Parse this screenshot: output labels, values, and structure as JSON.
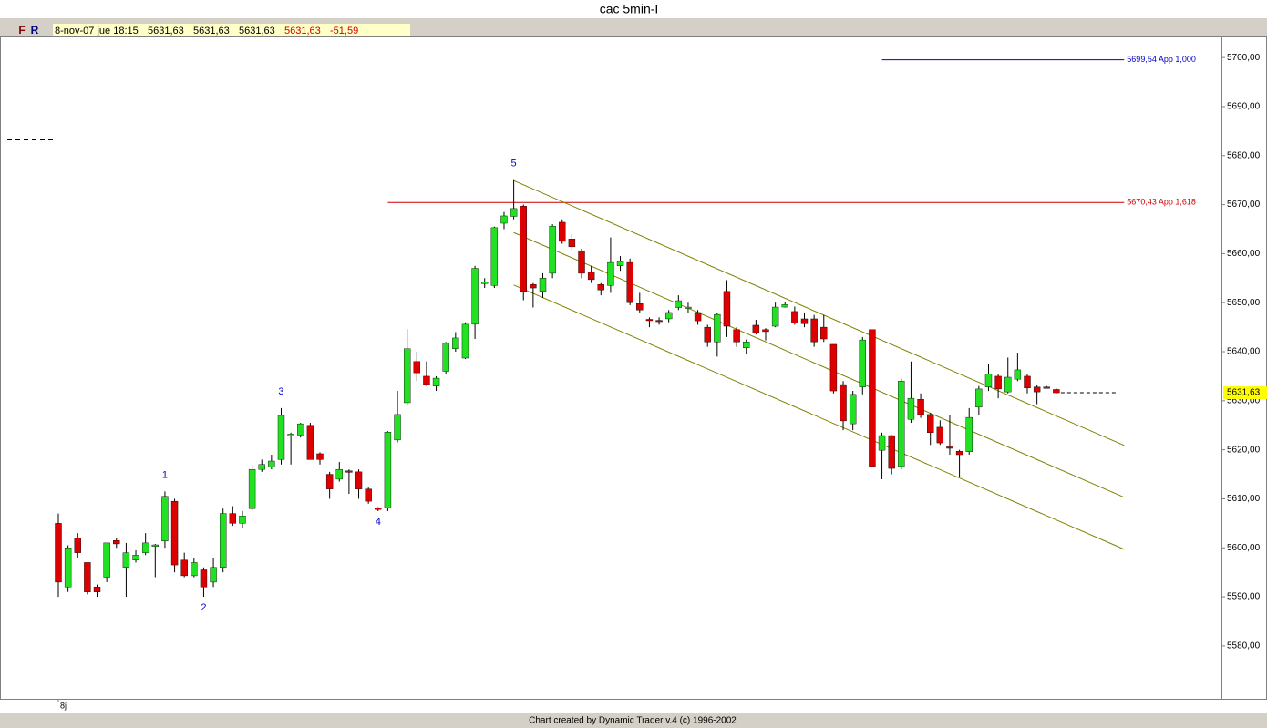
{
  "toolbar": {
    "buttons": [
      "F",
      "R"
    ],
    "fields": [
      {
        "text": "8-nov-07 jue 18:15",
        "color": "#000000"
      },
      {
        "text": "5631,63",
        "color": "#000000"
      },
      {
        "text": "5631,63",
        "color": "#000000"
      },
      {
        "text": "5631,63",
        "color": "#000000"
      },
      {
        "text": "5631,63",
        "color": "#cc0000"
      },
      {
        "text": "-51,59",
        "color": "#cc0000"
      }
    ]
  },
  "chart_data": {
    "type": "candlestick",
    "title": "cac 5min-I",
    "footer": "Chart created by Dynamic Trader v.4  (c) 1996-2002",
    "categories": [
      "8j",
      null,
      null,
      null,
      null,
      null,
      null,
      null,
      null,
      null,
      null,
      null,
      null,
      null,
      null,
      null,
      null,
      null,
      null,
      null,
      null,
      null,
      null,
      null,
      null,
      null,
      null,
      null,
      null,
      null,
      null,
      null,
      null,
      null,
      null,
      null,
      null,
      null,
      null,
      null,
      null,
      null,
      null,
      null,
      null,
      null,
      null,
      null,
      null,
      null,
      null,
      null,
      null,
      null,
      null,
      null,
      null,
      null,
      null,
      null,
      null,
      null,
      null,
      null,
      null,
      null,
      null,
      null,
      null,
      null,
      null,
      null,
      null,
      null,
      null,
      null,
      null,
      null,
      null,
      null,
      null,
      null,
      null,
      null,
      null,
      null,
      null,
      null,
      null,
      null,
      null,
      null,
      null,
      null,
      null,
      null,
      null,
      null,
      null,
      null,
      null,
      null,
      null,
      null
    ],
    "open": [
      5605,
      5592,
      5602,
      5597,
      5592,
      5594,
      5601.5,
      5596,
      5597.5,
      5599,
      5600.3,
      5601.4,
      5609.5,
      5597.5,
      5594.3,
      5595.5,
      5593,
      5596,
      5607,
      5605,
      5608,
      5616,
      5616.5,
      5618,
      5622.8,
      5623,
      5625,
      5619.2,
      5615,
      5614,
      5615.7,
      5615.5,
      5612,
      5608.1,
      5608.2,
      5622,
      5629.6,
      5638,
      5635,
      5633,
      5636,
      5640.6,
      5638.7,
      5645.6,
      5653.9,
      5653.5,
      5666.2,
      5667.6,
      5669.7,
      5653.7,
      5652.3,
      5656,
      5666.4,
      5663,
      5660.6,
      5656.3,
      5653.7,
      5653.5,
      5657.5,
      5658.2,
      5649.8,
      5646.6,
      5646.4,
      5646.7,
      5649,
      5648.9,
      5648,
      5645,
      5642,
      5652.3,
      5644.5,
      5640.8,
      5645.4,
      5644.5,
      5645.2,
      5649.1,
      5648.2,
      5646.7,
      5646.7,
      5645,
      5641.5,
      5633.3,
      5625.3,
      5632.8,
      5644.5,
      5619.9,
      5622.9,
      5616.6,
      5626.2,
      5630.3,
      5627.2,
      5624.6,
      5620.6,
      5619.7,
      5619.6,
      5628.7,
      5632.8,
      5635,
      5631.8,
      5634.4,
      5635,
      5632.8,
      5632.8,
      5632.3
    ],
    "high": [
      5607,
      5600.5,
      5603,
      5597,
      5592.5,
      5601,
      5602,
      5601,
      5599.5,
      5603,
      5600.8,
      5611.5,
      5610,
      5599,
      5598,
      5596,
      5598,
      5608,
      5608.5,
      5607.5,
      5617,
      5618,
      5619,
      5628.5,
      5623.5,
      5625.5,
      5625.5,
      5619.5,
      5615.5,
      5617.5,
      5616,
      5616,
      5612.3,
      5608.3,
      5623.8,
      5632,
      5644.6,
      5640,
      5638,
      5635,
      5642,
      5644,
      5646,
      5657.5,
      5655,
      5665.5,
      5668.5,
      5675,
      5670,
      5654,
      5656,
      5666,
      5667,
      5664,
      5661,
      5657.5,
      5654,
      5663.3,
      5659.5,
      5659,
      5652,
      5647,
      5647,
      5648.5,
      5651.5,
      5650,
      5648.5,
      5645.5,
      5648,
      5654.6,
      5645,
      5642.5,
      5646.5,
      5644.8,
      5650,
      5650.1,
      5649.2,
      5648,
      5647.5,
      5647.5,
      5641.5,
      5634,
      5632,
      5643,
      5644.5,
      5623.5,
      5623,
      5634.5,
      5638,
      5631.5,
      5627.5,
      5626,
      5627,
      5620,
      5628.5,
      5633,
      5637.5,
      5635.5,
      5638.8,
      5639.8,
      5635.5,
      5633.2,
      5633,
      5632.5
    ],
    "low": [
      5590,
      5591,
      5598,
      5590.5,
      5590,
      5593,
      5600,
      5590,
      5597,
      5598.5,
      5594,
      5600,
      5595,
      5594,
      5594,
      5590,
      5592,
      5595,
      5604.5,
      5604,
      5607.5,
      5615.5,
      5616,
      5617,
      5617,
      5622.5,
      5618,
      5617,
      5610,
      5613.5,
      5611,
      5610,
      5609,
      5607.5,
      5607.5,
      5621.5,
      5629,
      5634,
      5633,
      5632,
      5635.5,
      5640,
      5638.5,
      5642.6,
      5653,
      5653,
      5665,
      5667,
      5650.5,
      5649,
      5651,
      5655,
      5662,
      5660.5,
      5655,
      5654,
      5651.5,
      5652,
      5656.5,
      5649.5,
      5648,
      5645,
      5645.5,
      5646,
      5648.5,
      5648,
      5645.5,
      5641,
      5639,
      5643,
      5641,
      5639.6,
      5643.5,
      5642.3,
      5645,
      5649,
      5645.5,
      5645,
      5641,
      5642,
      5631.5,
      5624,
      5624,
      5631.3,
      5616.6,
      5614,
      5615,
      5616,
      5625.5,
      5626.5,
      5621,
      5621,
      5619,
      5614.5,
      5619,
      5627,
      5632,
      5630.5,
      5631.5,
      5634,
      5631.5,
      5629.3,
      5632.5,
      5631.5
    ],
    "close": [
      5593,
      5600,
      5599,
      5591,
      5591,
      5601,
      5600.8,
      5599,
      5598.5,
      5601,
      5600.6,
      5610.5,
      5596.5,
      5594.3,
      5597,
      5592,
      5596,
      5607,
      5605,
      5606.5,
      5616,
      5617,
      5617.7,
      5627,
      5623.2,
      5625.3,
      5618,
      5618,
      5612,
      5616,
      5615.4,
      5612,
      5609.5,
      5608,
      5623.6,
      5627.2,
      5640.6,
      5635.7,
      5633.3,
      5634.6,
      5641.7,
      5642.8,
      5645.6,
      5657,
      5654.2,
      5665.3,
      5667.7,
      5669.2,
      5652.3,
      5653,
      5655,
      5665.6,
      5662.5,
      5661.4,
      5656,
      5654.7,
      5652.6,
      5658.2,
      5658.4,
      5650,
      5648.5,
      5646.5,
      5646.3,
      5648,
      5650.4,
      5649.1,
      5646.3,
      5642,
      5647.6,
      5645.2,
      5642,
      5642,
      5643.9,
      5644.1,
      5649.1,
      5649.6,
      5645.9,
      5645.7,
      5642,
      5642.6,
      5632,
      5625.9,
      5631.3,
      5642.4,
      5616.6,
      5622.9,
      5616.2,
      5634,
      5630.5,
      5627.2,
      5623.5,
      5621.4,
      5620.3,
      5619,
      5626.6,
      5632.4,
      5635.5,
      5632.4,
      5634.8,
      5636.3,
      5632.6,
      5631.8,
      5632.7,
      5631.63
    ],
    "up_color": "#22e022",
    "down_color": "#dd0000",
    "ylim": [
      5569.2,
      5704.3
    ],
    "yticks": [
      {
        "value": 5580,
        "label": "5580,00"
      },
      {
        "value": 5590,
        "label": "5590,00"
      },
      {
        "value": 5600,
        "label": "5600,00"
      },
      {
        "value": 5610,
        "label": "5610,00"
      },
      {
        "value": 5620,
        "label": "5620,00"
      },
      {
        "value": 5630,
        "label": "5630,00"
      },
      {
        "value": 5640,
        "label": "5640,00"
      },
      {
        "value": 5650,
        "label": "5650,00"
      },
      {
        "value": 5660,
        "label": "5660,00"
      },
      {
        "value": 5670,
        "label": "5670,00"
      },
      {
        "value": 5680,
        "label": "5680,00"
      },
      {
        "value": 5690,
        "label": "5690,00"
      },
      {
        "value": 5700,
        "label": "5700,00"
      }
    ],
    "last_price": {
      "value": 5631.63,
      "label": "5631,63"
    },
    "levels": [
      {
        "value": 5699.54,
        "label": "5699,54 App 1,000",
        "color": "#0000cc",
        "x": [
          85,
          110
        ]
      },
      {
        "value": 5670.43,
        "label": "5670,43 App 1,618",
        "color": "#cc0000",
        "x": [
          34,
          110
        ]
      }
    ],
    "channel": {
      "color": "#808000",
      "lines": [
        {
          "x": [
            47,
            110
          ],
          "values": [
            5674.9,
            5620.9
          ]
        },
        {
          "x": [
            47,
            110
          ],
          "values": [
            5664.3,
            5610.3
          ]
        },
        {
          "x": [
            47,
            110
          ],
          "values": [
            5653.6,
            5599.7
          ]
        }
      ]
    },
    "annotations": [
      {
        "text": "1",
        "x": 11,
        "position": "above"
      },
      {
        "text": "2",
        "x": 15,
        "position": "below"
      },
      {
        "text": "3",
        "x": 23,
        "position": "above"
      },
      {
        "text": "4",
        "x": 33,
        "position": "below"
      },
      {
        "text": "5",
        "x": 47,
        "position": "above"
      }
    ]
  }
}
